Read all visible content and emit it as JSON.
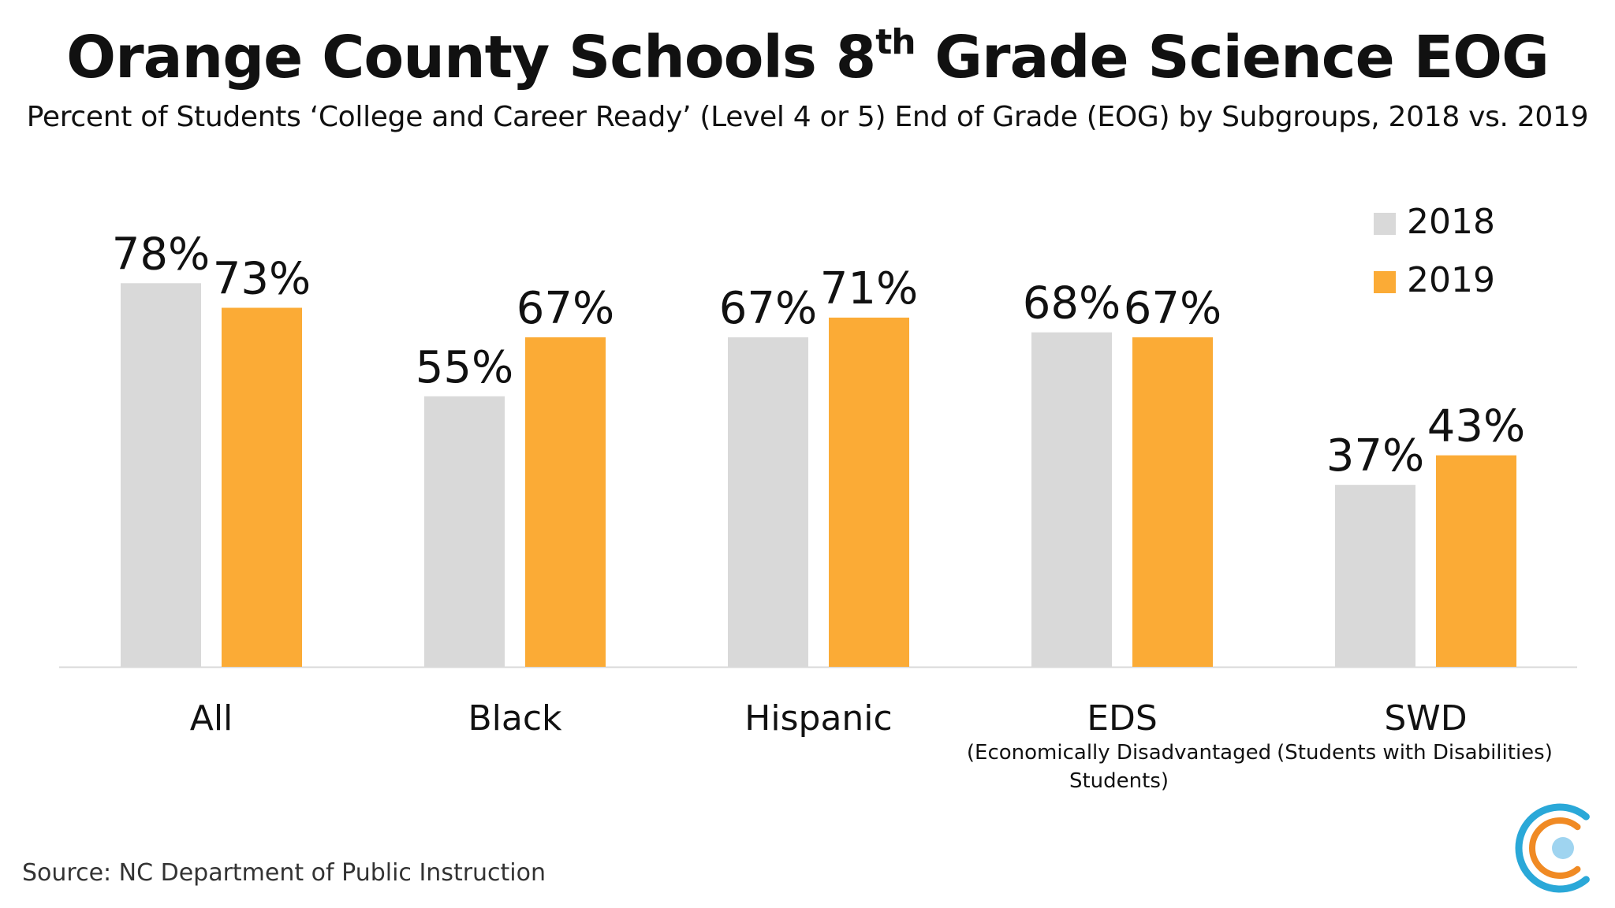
{
  "title": {
    "main": "Orange County Schools 8",
    "superscript": "th",
    "rest": " Grade Science EOG"
  },
  "subtitle": "Percent  of Students ‘College and Career Ready’ (Level 4 or 5) End of Grade (EOG) by Subgroups, 2018 vs. 2019",
  "source": "Source: NC Department of Public Instruction",
  "colors": {
    "series_2018": "#d9d9d9",
    "series_2019": "#fbab36",
    "axis": "#d9d9d9",
    "logo_outer": "#2aa8d8",
    "logo_middle": "#f08a24",
    "logo_inner": "#9fd4f0"
  },
  "logo_icon": "concentric-circles-logo-icon",
  "chart_data": {
    "type": "bar",
    "categories": [
      "All",
      "Black",
      "Hispanic",
      "EDS",
      "SWD"
    ],
    "category_sublabels": [
      "",
      "",
      "",
      "(Economically Disadvantaged\nStudents)",
      "(Students with Disabilities)"
    ],
    "series": [
      {
        "name": "2018",
        "values": [
          78,
          55,
          67,
          68,
          37
        ],
        "labels": [
          "78%",
          "55%",
          "67%",
          "68%",
          "37%"
        ]
      },
      {
        "name": "2019",
        "values": [
          73,
          67,
          71,
          67,
          43
        ],
        "labels": [
          "73%",
          "67%",
          "71%",
          "67%",
          "43%"
        ]
      }
    ],
    "ylim": [
      0,
      100
    ],
    "grid": false,
    "legend_position": "top-right"
  }
}
